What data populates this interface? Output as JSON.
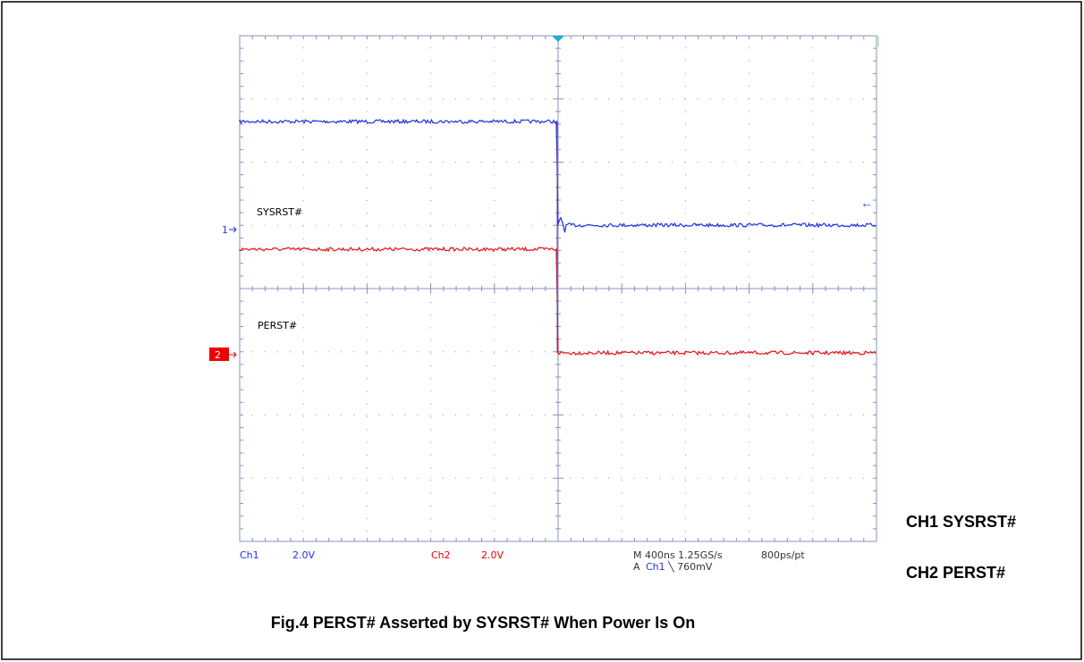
{
  "figure": {
    "traces": {
      "ch1_label": "SYSRST#",
      "ch2_label": "PERST#",
      "ch1_marker": "1",
      "ch2_marker": "2"
    },
    "status": {
      "ch1": "Ch1",
      "ch1_scale": "2.0V",
      "ch2": "Ch2",
      "ch2_scale": "2.0V",
      "timebase": "M 400ns 1.25GS/s",
      "resolution": "800ps/pt",
      "trigger_prefix": "A",
      "trigger_source": "Ch1",
      "trigger_level": "╲ 760mV"
    },
    "legend": [
      "CH1 SYSRST#",
      "CH2 PERST#"
    ],
    "caption": "Fig.4 PERST# Asserted by SYSRST# When Power Is On"
  }
}
